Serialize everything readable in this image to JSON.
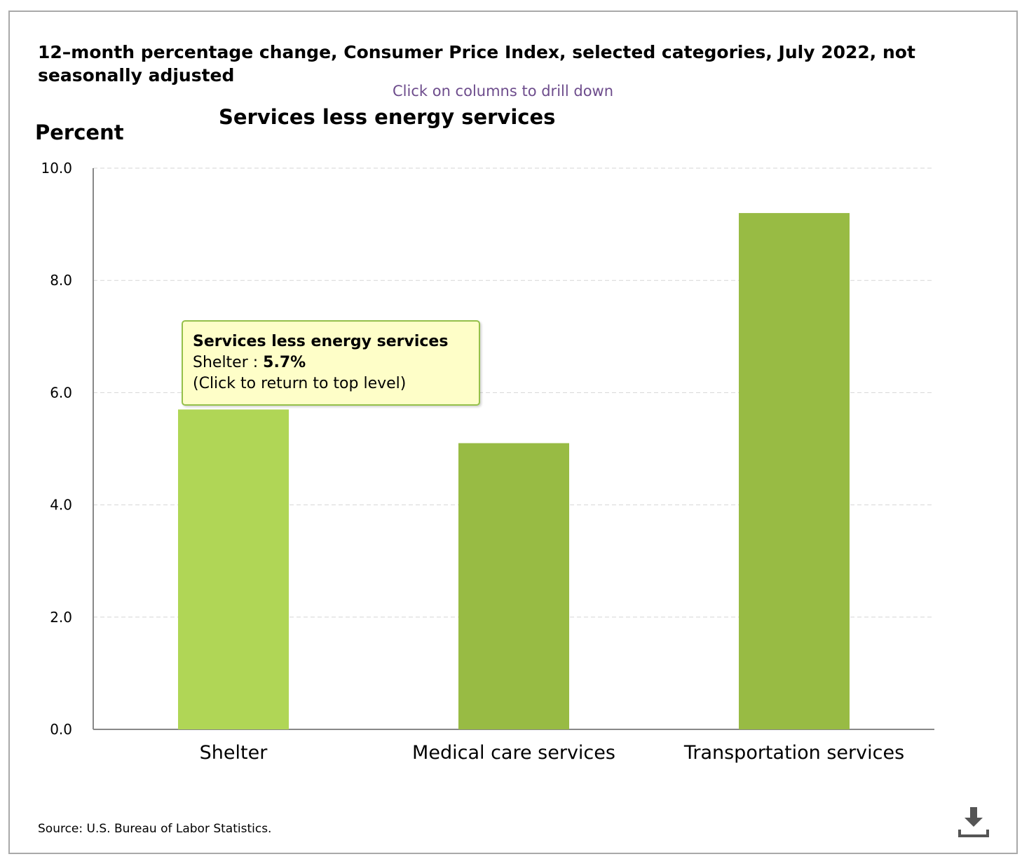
{
  "header": {
    "title": "12–month percentage change, Consumer Price Index, selected categories, July 2022, not seasonally adjusted",
    "drill_hint": "Click on columns to drill down"
  },
  "chart_data": {
    "type": "bar",
    "title": "Services less energy services",
    "ylabel": "Percent",
    "xlabel": "",
    "categories": [
      "Shelter",
      "Medical care services",
      "Transportation services"
    ],
    "series": [
      {
        "values": [
          5.7,
          5.1,
          9.2
        ]
      }
    ],
    "ylim": [
      0,
      10
    ],
    "yticks": [
      "0.0",
      "2.0",
      "4.0",
      "6.0",
      "8.0",
      "10.0"
    ],
    "grid": true,
    "colors": {
      "bar": "#98bb44",
      "bar_highlight": "#b0d656",
      "grid": "#d6d6d6",
      "axis": "#888888"
    },
    "highlighted_index": 0
  },
  "tooltip": {
    "title": "Services less energy services",
    "label": "Shelter",
    "separator": " : ",
    "value": "5.7%",
    "hint": "(Click to return to top level)",
    "background": "#fefec8",
    "border": "#95c04a"
  },
  "footer": {
    "source": "Source: U.S. Bureau of Labor Statistics.",
    "download_icon": "download-icon"
  }
}
